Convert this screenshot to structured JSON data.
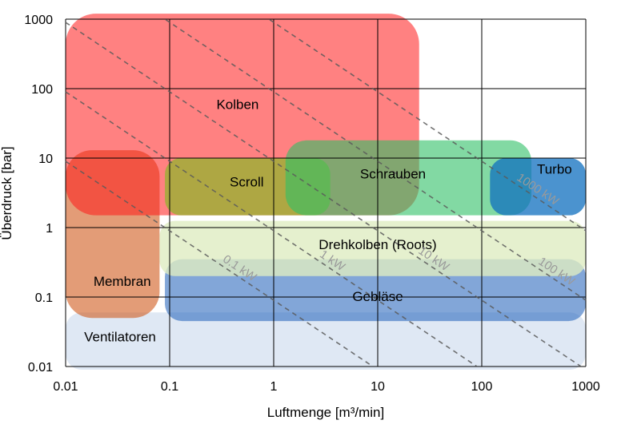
{
  "chart_data": {
    "type": "region-map",
    "title": "",
    "xlabel": "Luftmenge  [m³/min]",
    "ylabel": "Überdruck  [bar]",
    "x_scale": "log",
    "y_scale": "log",
    "xlim": [
      0.01,
      1000
    ],
    "ylim": [
      0.01,
      1000
    ],
    "grid": true,
    "x_ticks": [
      "0.01",
      "0.1",
      "1",
      "10",
      "100",
      "1000"
    ],
    "y_ticks": [
      "0.01",
      "0.1",
      "1",
      "10",
      "100",
      "1000"
    ],
    "regions": [
      {
        "name": "Ventilatoren",
        "x_range": [
          0.01,
          1000
        ],
        "p_range": [
          0.009,
          0.06
        ],
        "color": "#dbe5f3",
        "opacity": 0.9
      },
      {
        "name": "Membran",
        "x_range": [
          0.01,
          0.08
        ],
        "p_range": [
          0.05,
          13
        ],
        "color": "#d05a1c",
        "opacity": 0.6
      },
      {
        "name": "Kolben",
        "x_range": [
          0.01,
          25
        ],
        "p_range": [
          1.5,
          1200
        ],
        "color": "#ff1a1a",
        "opacity": 0.55
      },
      {
        "name": "Scroll",
        "x_range": [
          0.09,
          3.5
        ],
        "p_range": [
          1.5,
          10
        ],
        "color": "#8cb82a",
        "opacity": 0.7
      },
      {
        "name": "Schrauben",
        "x_range": [
          1.3,
          300
        ],
        "p_range": [
          1.5,
          18
        ],
        "color": "#2fbf65",
        "opacity": 0.6
      },
      {
        "name": "Turbo",
        "x_range": [
          120,
          1000
        ],
        "p_range": [
          1.5,
          10
        ],
        "color": "#0f6fbf",
        "opacity": 0.75
      },
      {
        "name": "Gebläse",
        "x_range": [
          0.09,
          1000
        ],
        "p_range": [
          0.045,
          0.35
        ],
        "color": "#2e6bbe",
        "opacity": 0.6
      },
      {
        "name": "Drehkolben  (Roots)",
        "x_range": [
          0.08,
          1000
        ],
        "p_range": [
          0.2,
          1.25
        ],
        "color": "#dfecc2",
        "opacity": 0.8
      }
    ],
    "power_lines": [
      {
        "label": "0.1 kW",
        "power_kW": 0.1
      },
      {
        "label": "1 kW",
        "power_kW": 1
      },
      {
        "label": "10 kW",
        "power_kW": 10
      },
      {
        "label": "100 kW",
        "power_kW": 100
      },
      {
        "label": "1000 kW",
        "power_kW": 1000
      }
    ]
  }
}
